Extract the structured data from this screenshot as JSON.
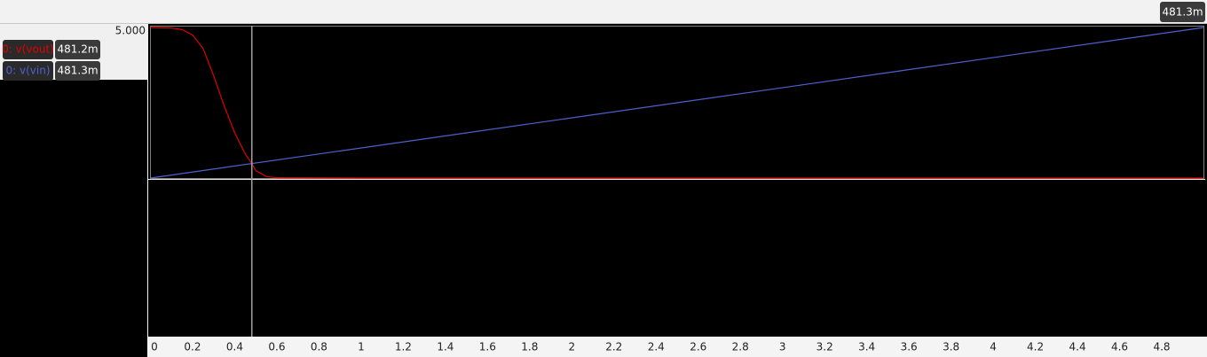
{
  "chart_data": {
    "type": "line",
    "xlim": [
      0,
      5
    ],
    "ylim": [
      0,
      5
    ],
    "xticks": [
      0,
      0.2,
      0.4,
      0.6,
      0.8,
      1,
      1.2,
      1.4,
      1.6,
      1.8,
      2,
      2.2,
      2.4,
      2.6,
      2.8,
      3,
      3.2,
      3.4,
      3.6,
      3.8,
      4,
      4.2,
      4.4,
      4.6,
      4.8
    ],
    "yticks": [
      {
        "value": 5,
        "label": "5.000"
      }
    ],
    "cursor": {
      "x": 0.4813,
      "label": "481.3m",
      "color": "#a0a0a0"
    },
    "series": [
      {
        "name": "0: v(vout)",
        "color": "#e00000",
        "x": [
          0,
          0.1,
          0.15,
          0.2,
          0.25,
          0.3,
          0.35,
          0.4,
          0.45,
          0.4813,
          0.5,
          0.55,
          0.6,
          1,
          5
        ],
        "values": [
          5,
          4.98,
          4.93,
          4.75,
          4.3,
          3.4,
          2.4,
          1.5,
          0.8,
          0.4812,
          0.25,
          0.05,
          0.01,
          0,
          0
        ],
        "cursor_value": 0.4812,
        "cursor_label": "481.2m"
      },
      {
        "name": "0: v(vin)",
        "color": "#5060d0",
        "x": [
          0,
          5
        ],
        "values": [
          0,
          5
        ],
        "cursor_value": 0.4813,
        "cursor_label": "481.3m"
      }
    ]
  }
}
